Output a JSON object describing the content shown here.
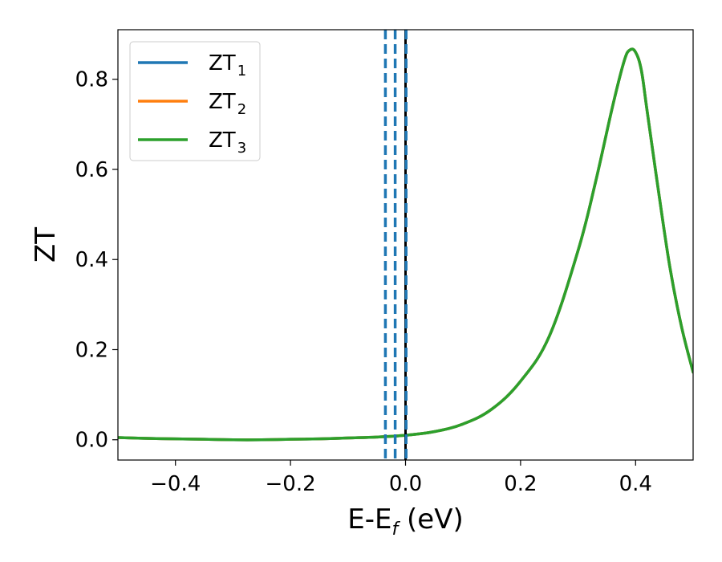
{
  "chart_data": {
    "type": "line",
    "title": "",
    "xlabel": {
      "main": "E-E",
      "sub": "f",
      "unit": " (eV)"
    },
    "ylabel": "ZT",
    "xlim": [
      -0.5,
      0.5
    ],
    "ylim": [
      -0.045,
      0.91
    ],
    "xticks": [
      -0.4,
      -0.2,
      0.0,
      0.2,
      0.4
    ],
    "xtick_labels": [
      "−0.4",
      "−0.2",
      "0.0",
      "0.2",
      "0.4"
    ],
    "yticks": [
      0.0,
      0.2,
      0.4,
      0.6,
      0.8
    ],
    "ytick_labels": [
      "0.0",
      "0.2",
      "0.4",
      "0.6",
      "0.8"
    ],
    "grid": false,
    "legend_position": "top-left",
    "series": [
      {
        "name": "ZT",
        "sub": "1",
        "color": "#1f77b4",
        "x": [
          -0.5,
          -0.45,
          -0.4,
          -0.35,
          -0.3,
          -0.25,
          -0.2,
          -0.15,
          -0.1,
          -0.05,
          0.0,
          0.05,
          0.1,
          0.15,
          0.2,
          0.25,
          0.3,
          0.33,
          0.36,
          0.38,
          0.39,
          0.4,
          0.41,
          0.42,
          0.44,
          0.46,
          0.48,
          0.5
        ],
        "y": [
          0.005,
          0.003,
          0.002,
          0.001,
          0.0,
          0.0,
          0.001,
          0.002,
          0.004,
          0.006,
          0.01,
          0.018,
          0.035,
          0.068,
          0.13,
          0.23,
          0.42,
          0.57,
          0.74,
          0.84,
          0.865,
          0.86,
          0.82,
          0.73,
          0.55,
          0.38,
          0.25,
          0.15
        ]
      },
      {
        "name": "ZT",
        "sub": "2",
        "color": "#ff7f0e",
        "x": [
          -0.5,
          -0.45,
          -0.4,
          -0.35,
          -0.3,
          -0.25,
          -0.2,
          -0.15,
          -0.1,
          -0.05,
          0.0,
          0.05,
          0.1,
          0.15,
          0.2,
          0.25,
          0.3,
          0.33,
          0.36,
          0.38,
          0.39,
          0.4,
          0.41,
          0.42,
          0.44,
          0.46,
          0.48,
          0.5
        ],
        "y": [
          0.005,
          0.003,
          0.002,
          0.001,
          0.0,
          0.0,
          0.001,
          0.002,
          0.004,
          0.006,
          0.01,
          0.018,
          0.035,
          0.068,
          0.13,
          0.23,
          0.42,
          0.57,
          0.74,
          0.84,
          0.865,
          0.86,
          0.82,
          0.73,
          0.55,
          0.38,
          0.25,
          0.15
        ]
      },
      {
        "name": "ZT",
        "sub": "3",
        "color": "#2ca02c",
        "x": [
          -0.5,
          -0.45,
          -0.4,
          -0.35,
          -0.3,
          -0.25,
          -0.2,
          -0.15,
          -0.1,
          -0.05,
          0.0,
          0.05,
          0.1,
          0.15,
          0.2,
          0.25,
          0.3,
          0.33,
          0.36,
          0.38,
          0.39,
          0.4,
          0.41,
          0.42,
          0.44,
          0.46,
          0.48,
          0.5
        ],
        "y": [
          0.005,
          0.003,
          0.002,
          0.001,
          0.0,
          0.0,
          0.001,
          0.002,
          0.004,
          0.006,
          0.01,
          0.018,
          0.035,
          0.068,
          0.13,
          0.23,
          0.42,
          0.57,
          0.74,
          0.84,
          0.865,
          0.86,
          0.82,
          0.73,
          0.55,
          0.38,
          0.25,
          0.15
        ]
      }
    ],
    "vlines": [
      {
        "x": -0.035,
        "style": "dashed",
        "color": "#1f77b4"
      },
      {
        "x": -0.018,
        "style": "dashed",
        "color": "#1f77b4"
      },
      {
        "x": 0.0,
        "style": "solid",
        "color": "#000000"
      },
      {
        "x": 0.001,
        "style": "dashed",
        "color": "#1f77b4"
      }
    ]
  }
}
